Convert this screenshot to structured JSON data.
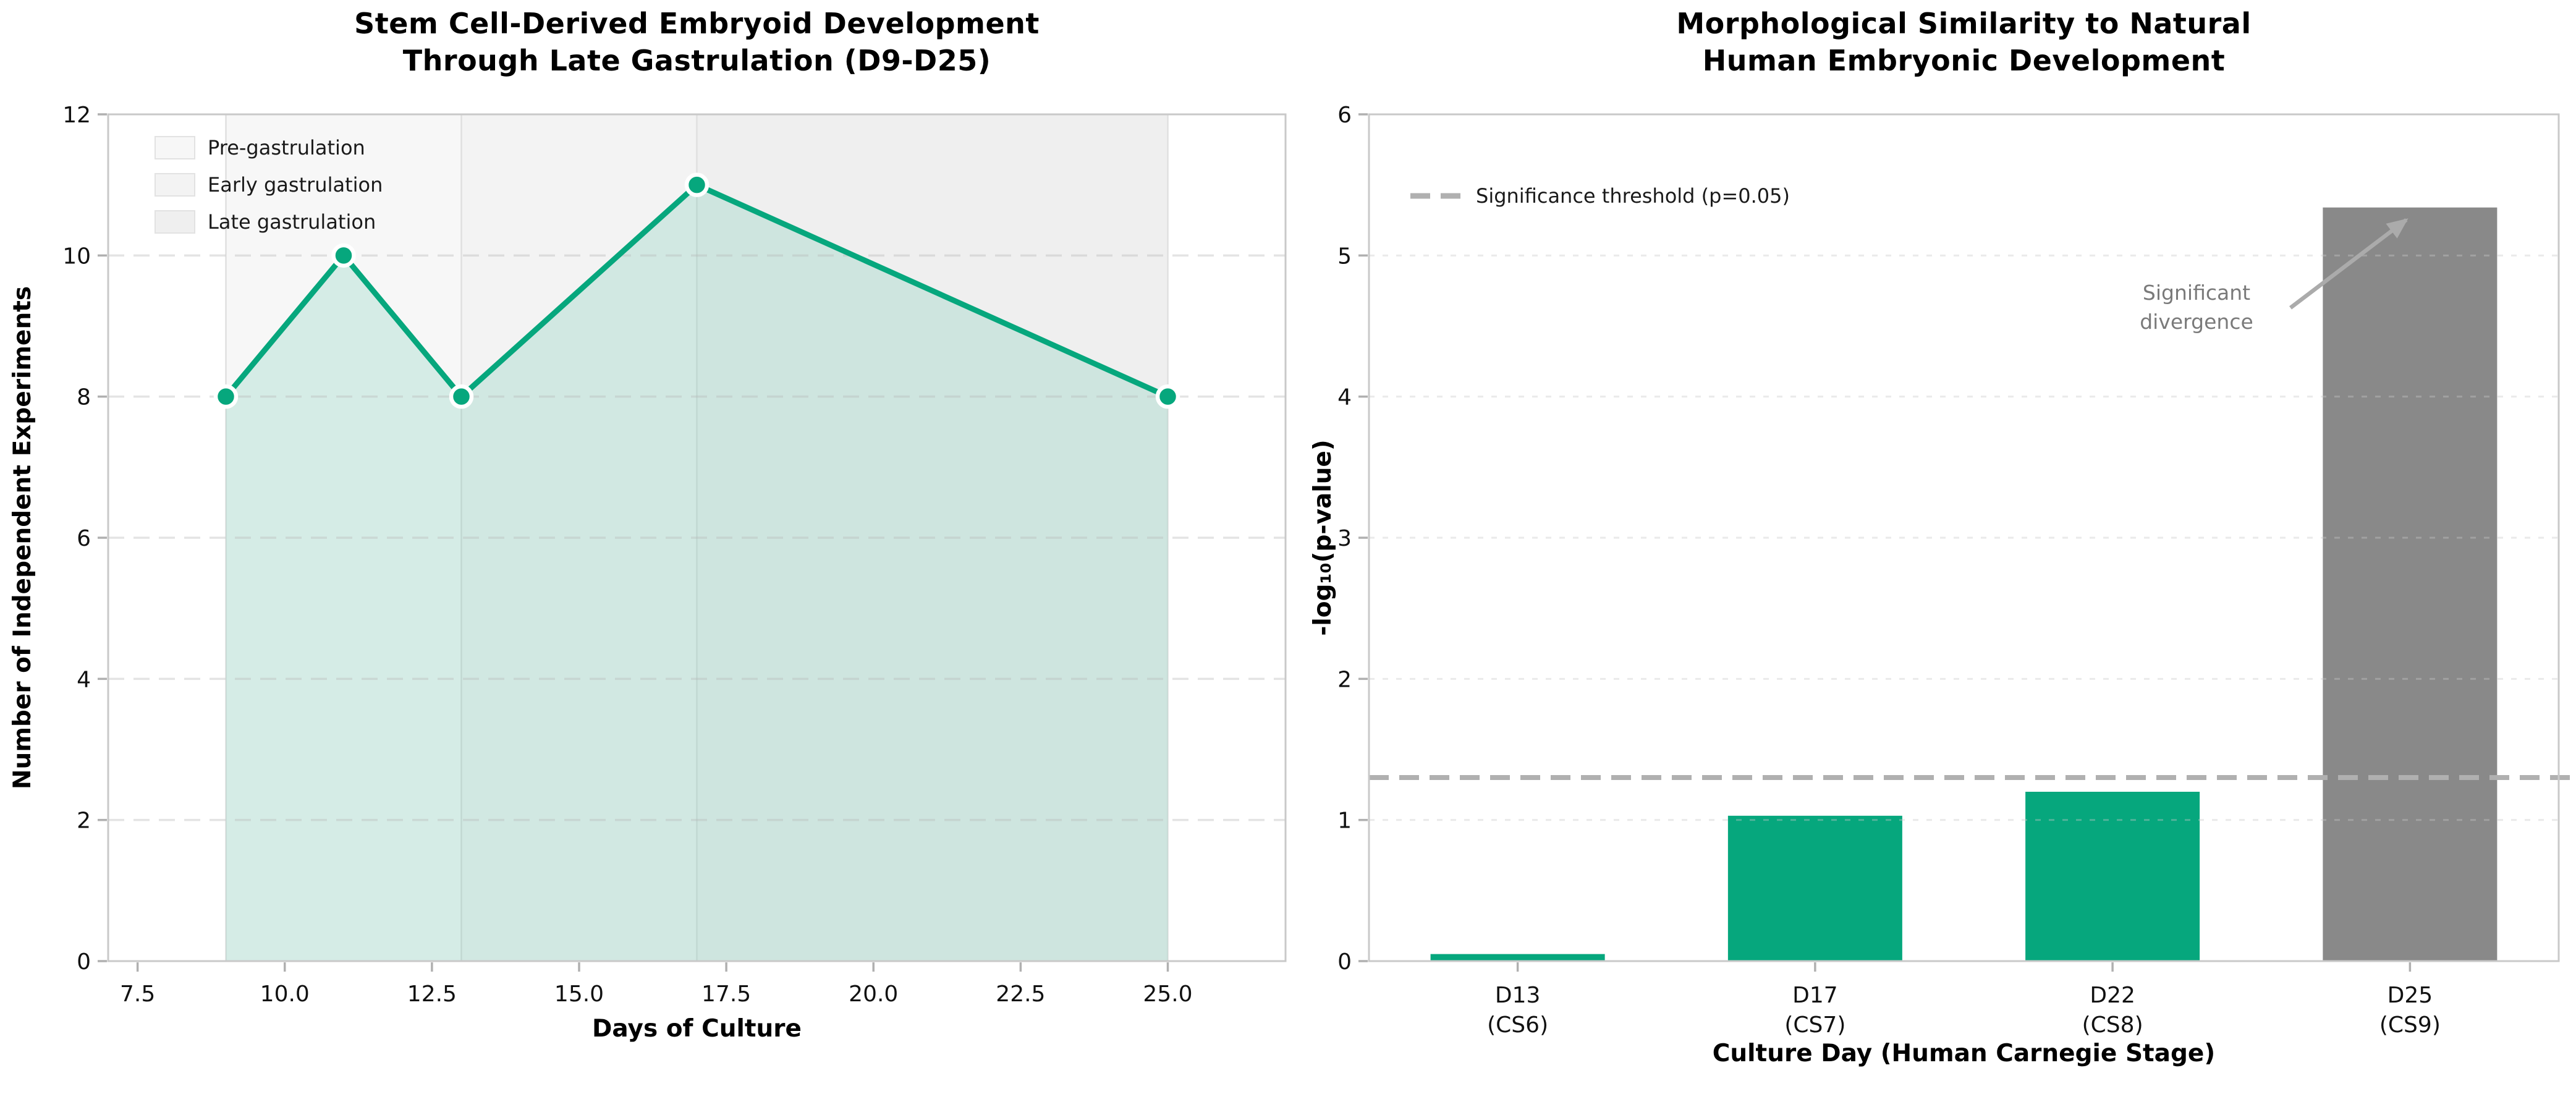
{
  "figure": {
    "background": "#ffffff",
    "accent_green": "#06a77d",
    "neutral_gray": "#898989"
  },
  "chart_data": [
    {
      "type": "line",
      "title": "Stem Cell-Derived Embryoid Development\nThrough Late Gastrulation (D9-D25)",
      "xlabel": "Days of Culture",
      "ylabel": "Number of Independent Experiments",
      "x": [
        9,
        11,
        13,
        17,
        25
      ],
      "y": [
        8,
        10,
        8,
        11,
        8
      ],
      "xlim": [
        7,
        27
      ],
      "ylim": [
        0,
        12
      ],
      "xticks": [
        7.5,
        10.0,
        12.5,
        15.0,
        17.5,
        20.0,
        22.5,
        25.0
      ],
      "xtick_labels": [
        "7.5",
        "10.0",
        "12.5",
        "15.0",
        "17.5",
        "20.0",
        "22.5",
        "25.0"
      ],
      "yticks": [
        0,
        2,
        4,
        6,
        8,
        10,
        12
      ],
      "grid": "horizontal-dashed",
      "legend_position": "upper-left",
      "line_color": "#06a77d",
      "marker": "circle-white-edge",
      "fill_color": "rgba(6,167,125,0.14)",
      "legend": {
        "items": [
          {
            "label": "Pre-gastrulation",
            "color": "#f7f7f7"
          },
          {
            "label": "Early gastrulation",
            "color": "#f3f3f3"
          },
          {
            "label": "Late gastrulation",
            "color": "#efefef"
          }
        ]
      },
      "bands": [
        {
          "label": "Pre-gastrulation",
          "from": 9,
          "to": 13,
          "color": "#f7f7f7"
        },
        {
          "label": "Early gastrulation",
          "from": 13,
          "to": 17,
          "color": "#f3f3f3"
        },
        {
          "label": "Late gastrulation",
          "from": 17,
          "to": 25,
          "color": "#efefef"
        }
      ]
    },
    {
      "type": "bar",
      "title": "Morphological Similarity to Natural\nHuman Embryonic Development",
      "xlabel": "Culture Day (Human Carnegie Stage)",
      "ylabel": "-log₁₀(p-value)",
      "categories": [
        "D13\n(CS6)",
        "D17\n(CS7)",
        "D22\n(CS8)",
        "D25\n(CS9)"
      ],
      "values": [
        0.05,
        1.03,
        1.2,
        5.34
      ],
      "bar_colors": [
        "#06a77d",
        "#06a77d",
        "#06a77d",
        "#898989"
      ],
      "ylim": [
        0,
        6
      ],
      "yticks": [
        0,
        1,
        2,
        3,
        4,
        5,
        6
      ],
      "grid": "horizontal-dashed",
      "legend_position": "upper-left",
      "threshold": {
        "value": 1.301,
        "label": "Significance threshold (p=0.05)",
        "color": "#b0b0b0",
        "style": "dashed"
      },
      "annotation": {
        "text": "Significant\ndivergence",
        "target_category": "D25\n(CS9)",
        "color": "#7a7a7a",
        "arrow_color": "#ababab"
      }
    }
  ]
}
